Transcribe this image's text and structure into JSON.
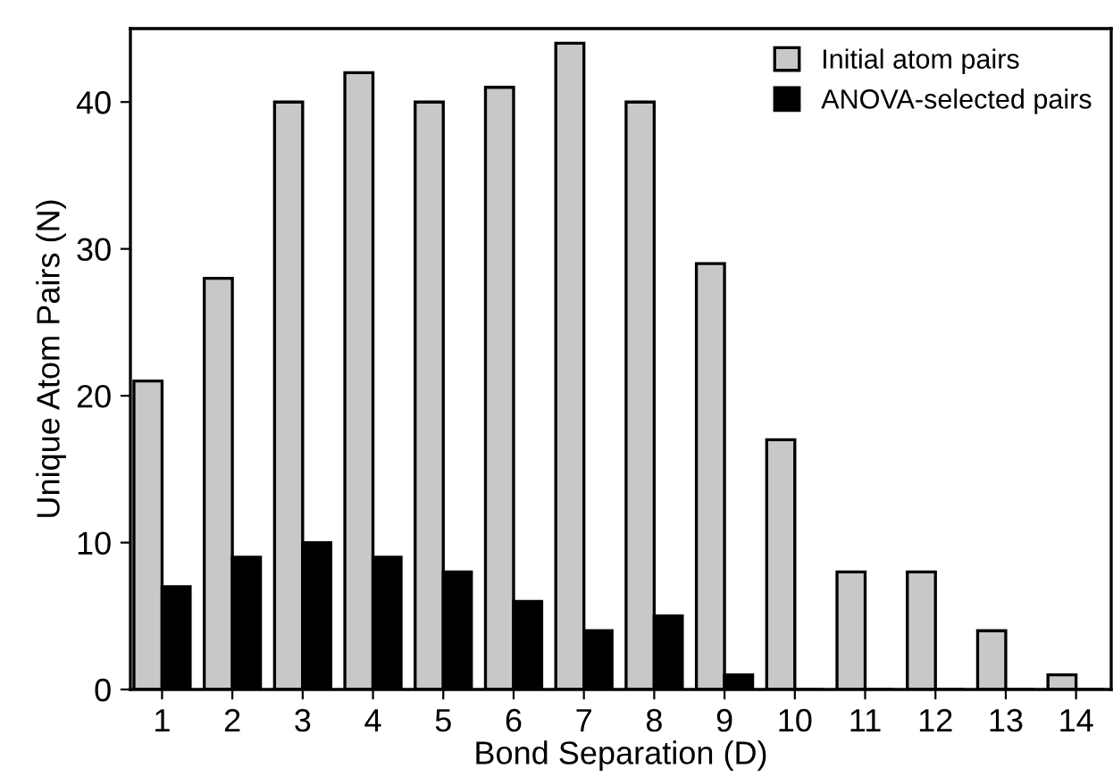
{
  "chart_data": {
    "type": "bar",
    "xlabel": "Bond Separation (D)",
    "ylabel": "Unique Atom Pairs (N)",
    "categories": [
      "1",
      "2",
      "3",
      "4",
      "5",
      "6",
      "7",
      "8",
      "9",
      "10",
      "11",
      "12",
      "13",
      "14"
    ],
    "series": [
      {
        "name": "Initial atom pairs",
        "color": "#c8c8c8",
        "values": [
          21,
          28,
          40,
          42,
          40,
          41,
          44,
          40,
          29,
          17,
          8,
          8,
          4,
          1
        ]
      },
      {
        "name": "ANOVA-selected pairs",
        "color": "#000000",
        "values": [
          7,
          9,
          10,
          9,
          8,
          6,
          4,
          5,
          1,
          0,
          0,
          0,
          0,
          0
        ]
      }
    ],
    "ylim": [
      0,
      45
    ],
    "yticks": [
      0,
      10,
      20,
      30,
      40
    ],
    "grid": false,
    "legend": "top right"
  }
}
